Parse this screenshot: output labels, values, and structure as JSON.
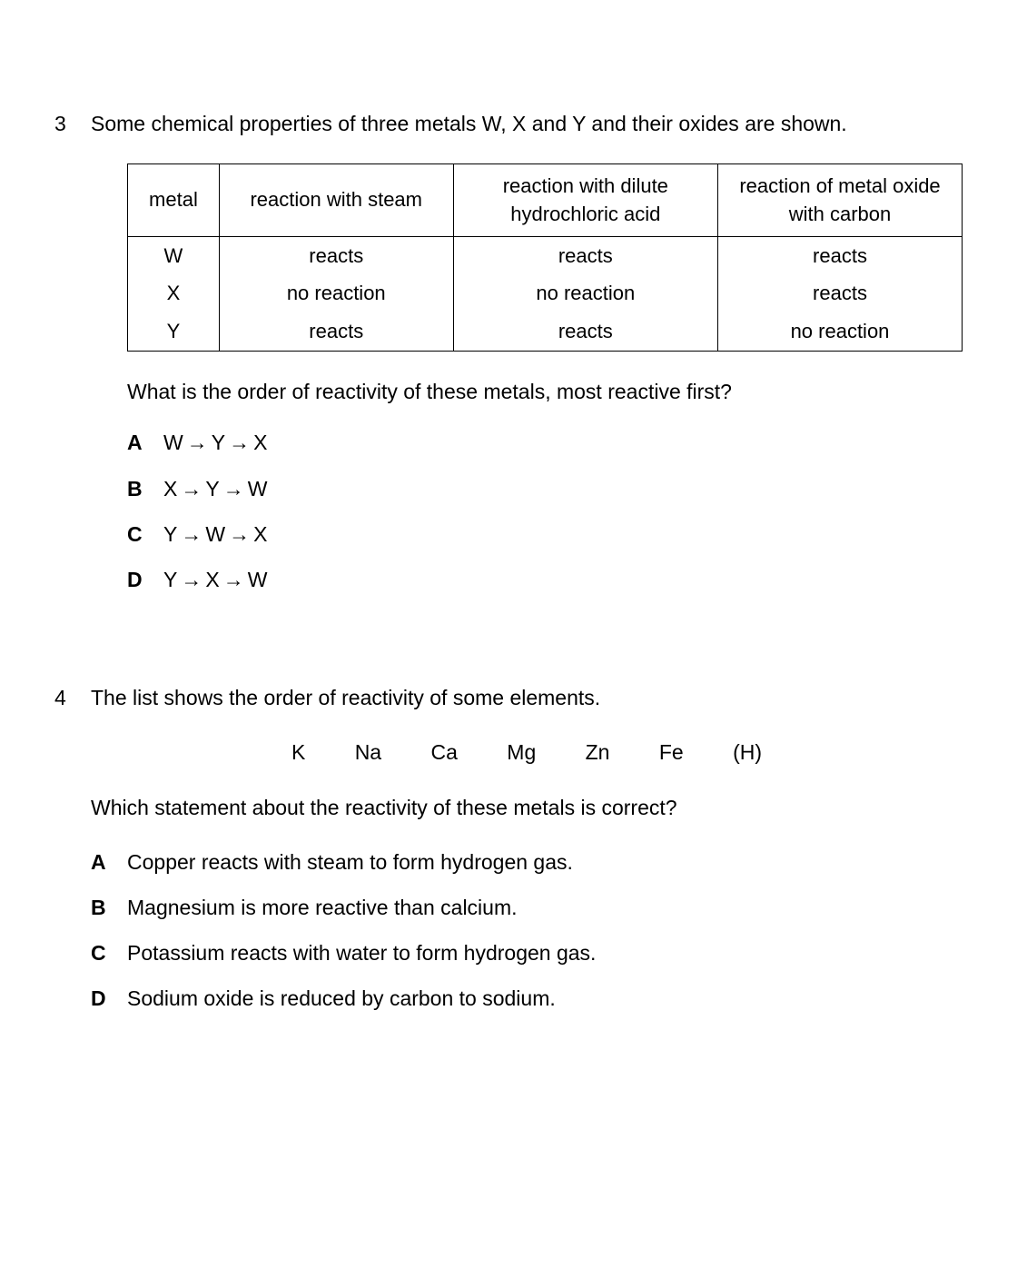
{
  "q3": {
    "number": "3",
    "text": "Some chemical properties of three metals W, X and Y and their oxides are shown.",
    "table": {
      "headers": [
        "metal",
        "reaction with steam",
        "reaction with dilute hydrochloric acid",
        "reaction of metal oxide with carbon"
      ],
      "rows": [
        [
          "W",
          "reacts",
          "reacts",
          "reacts"
        ],
        [
          "X",
          "no reaction",
          "no reaction",
          "reacts"
        ],
        [
          "Y",
          "reacts",
          "reacts",
          "no reaction"
        ]
      ]
    },
    "subtext": "What is the order of reactivity of these metals, most reactive first?",
    "options": [
      {
        "letter": "A",
        "seq": [
          "W",
          "Y",
          "X"
        ]
      },
      {
        "letter": "B",
        "seq": [
          "X",
          "Y",
          "W"
        ]
      },
      {
        "letter": "C",
        "seq": [
          "Y",
          "W",
          "X"
        ]
      },
      {
        "letter": "D",
        "seq": [
          "Y",
          "X",
          "W"
        ]
      }
    ]
  },
  "q4": {
    "number": "4",
    "text": "The list shows the order of reactivity of some elements.",
    "elements": [
      "K",
      "Na",
      "Ca",
      "Mg",
      "Zn",
      "Fe",
      "(H)"
    ],
    "subtext": "Which statement about the reactivity of these metals is correct?",
    "options": [
      {
        "letter": "A",
        "text": "Copper reacts with steam to form hydrogen gas."
      },
      {
        "letter": "B",
        "text": "Magnesium is more reactive than calcium."
      },
      {
        "letter": "C",
        "text": "Potassium reacts with water to form hydrogen gas."
      },
      {
        "letter": "D",
        "text": "Sodium oxide is reduced by carbon to sodium."
      }
    ]
  },
  "arrow": "→"
}
